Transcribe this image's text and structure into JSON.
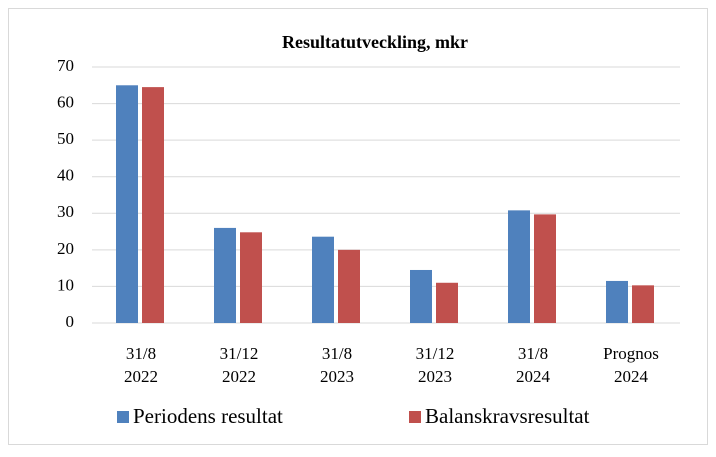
{
  "chart_data": {
    "type": "bar",
    "title": "Resultatutveckling, mkr",
    "categories": [
      [
        "31/8",
        "2022"
      ],
      [
        "31/12",
        "2022"
      ],
      [
        "31/8",
        "2023"
      ],
      [
        "31/12",
        "2023"
      ],
      [
        "31/8",
        "2024"
      ],
      [
        "Prognos",
        "2024"
      ]
    ],
    "series": [
      {
        "name": "Periodens resultat",
        "color": "#4f81bd",
        "values": [
          65,
          26,
          23.6,
          14.5,
          30.8,
          11.5
        ]
      },
      {
        "name": "Balanskravsresultat",
        "color": "#c0504d",
        "values": [
          64.5,
          24.8,
          20,
          11,
          29.7,
          10.3
        ]
      }
    ],
    "ylim": [
      0,
      70
    ],
    "yticks": [
      0,
      10,
      20,
      30,
      40,
      50,
      60,
      70
    ],
    "grid": true,
    "legend": "bottom"
  }
}
